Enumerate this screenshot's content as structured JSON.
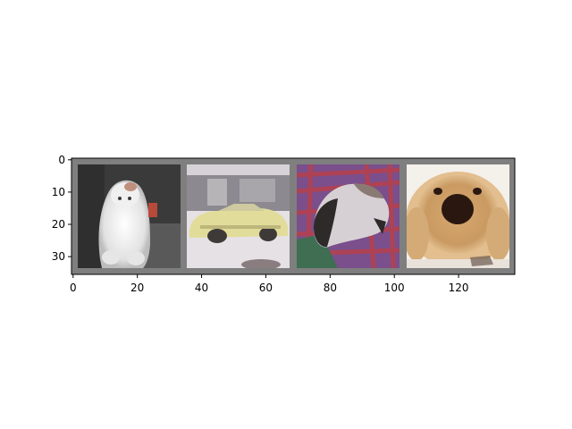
{
  "chart_data": {
    "type": "image",
    "title": "",
    "xlabel": "",
    "ylabel": "",
    "xlim": [
      -0.5,
      137.5
    ],
    "ylim": [
      35.5,
      -0.5
    ],
    "x_ticks": [
      {
        "value": 0,
        "label": "0"
      },
      {
        "value": 20,
        "label": "20"
      },
      {
        "value": 40,
        "label": "40"
      },
      {
        "value": 60,
        "label": "60"
      },
      {
        "value": 80,
        "label": "80"
      },
      {
        "value": 100,
        "label": "100"
      },
      {
        "value": 120,
        "label": "120"
      }
    ],
    "y_ticks": [
      {
        "value": 0,
        "label": "0"
      },
      {
        "value": 10,
        "label": "10"
      },
      {
        "value": 20,
        "label": "20"
      },
      {
        "value": 30,
        "label": "30"
      }
    ],
    "grid": false,
    "background_color": "#7f7f7f",
    "panels": [
      {
        "name": "white-dog-image",
        "x_range": [
          2,
          34
        ],
        "y_range": [
          2,
          34
        ]
      },
      {
        "name": "yellow-car-image",
        "x_range": [
          36,
          68
        ],
        "y_range": [
          2,
          34
        ]
      },
      {
        "name": "cat-on-blanket-image",
        "x_range": [
          70,
          102
        ],
        "y_range": [
          2,
          34
        ]
      },
      {
        "name": "pekingese-dog-image",
        "x_range": [
          104,
          136
        ],
        "y_range": [
          2,
          34
        ]
      }
    ]
  },
  "colors": {
    "grid_border": "#7f7f7f",
    "dog1_bg_top": "#3a3a3a",
    "dog1_bg_bottom": "#585858",
    "dog1_fur": "#ececec",
    "dog1_accent": "#b84a3a",
    "car_ceiling": "#d4d0d3",
    "car_wall": "#8c8a90",
    "car_floor": "#e6e1e4",
    "car_body": "#e2dc9a",
    "car_dark": "#3e3a38",
    "cat_blanket": "#7a4f8c",
    "cat_stripe": "#b8404c",
    "cat_white": "#d6d0d4",
    "cat_dark": "#2e2a2a",
    "cat_green": "#3f6e52",
    "peke_bg": "#f4f0ea",
    "peke_fur": "#c79a64",
    "peke_light": "#e8c79a",
    "peke_dark": "#2a1810"
  }
}
